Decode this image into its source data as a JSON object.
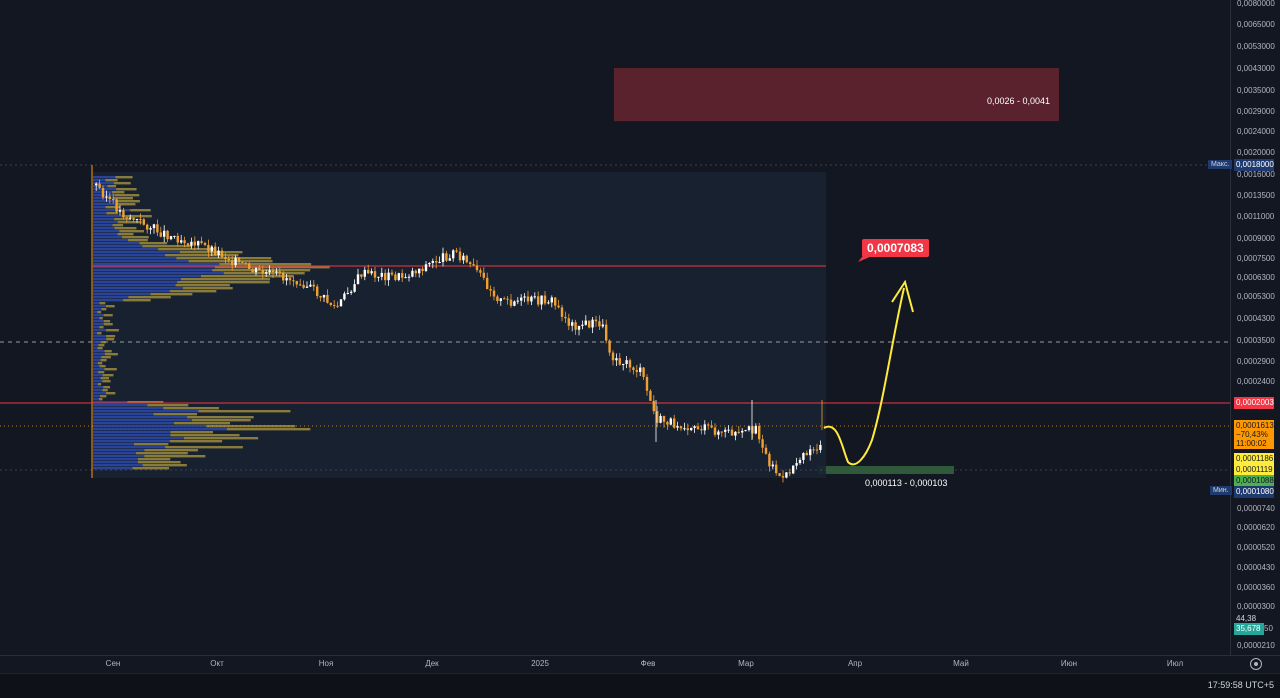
{
  "price_scale": {
    "ticks": [
      "0,0080000",
      "0,0065000",
      "0,0053000",
      "0,0043000",
      "0,0035000",
      "0,0029000",
      "0,0024000",
      "0,0020000",
      "0,0016000",
      "0,0013500",
      "0,0011000",
      "0,0009000",
      "0,0007500",
      "0,0006300",
      "0,0005300",
      "0,0004300",
      "0,0003500",
      "0,0002900",
      "0,0002400",
      "0,0000740",
      "0,0000620",
      "0,0000520",
      "0,0000430",
      "0,0000360",
      "0,0000300",
      "0,0000210"
    ],
    "max_label": "Макс.",
    "max_value": "0,0018000",
    "min_label": "Мин.",
    "min_value": "0,0001080",
    "red_line_value": "0,0002003",
    "current_price": "0,0001613",
    "current_change": "−70,43%",
    "countdown": "11:00:02",
    "tag_yellow_1": "0,0001186",
    "tag_yellow_2": "0,0001119",
    "tag_green": "0,0001088",
    "indicator_value_1": "44,38",
    "indicator_value_2": "35,678",
    "indicator_value_2_suffix": "50",
    "colors": {
      "red": "#f23645",
      "orange": "#ff9800",
      "yellow": "#ffeb3b",
      "green": "#4caf50",
      "blue_tag": "#1e3a6e",
      "teal": "#26a69a"
    }
  },
  "time_axis": {
    "labels": [
      "Сен",
      "Окт",
      "Ноя",
      "Дек",
      "2025",
      "Фев",
      "Мар",
      "Апр",
      "Май",
      "Июн",
      "Июл"
    ]
  },
  "annotations": {
    "resistance_zone": "0,0026 - 0,0041",
    "support_zone": "0,000113 - 0,000103",
    "target_price": "0,0007083"
  },
  "status_bar": {
    "clock": "17:59:58 UTC+5"
  },
  "chart_data": {
    "type": "candlestick",
    "x": [
      "Сен",
      "Окт",
      "Ноя",
      "Дек",
      "2025",
      "Фев",
      "Мар"
    ],
    "close_approx": [
      0.0015,
      0.001,
      0.00068,
      0.00085,
      0.00053,
      0.0002,
      0.000161
    ],
    "horizontal_lines": [
      0.0007083,
      0.0002003
    ],
    "zones": [
      {
        "label": "0,0026 - 0,0041",
        "low": 0.0026,
        "high": 0.0041
      },
      {
        "label": "0,000113 - 0,000103",
        "low": 0.000103,
        "high": 0.000113
      }
    ],
    "projection": {
      "from": 0.000161,
      "dip": 0.000108,
      "to": 0.0007083
    },
    "ylim": [
      2.1e-05,
      0.008
    ],
    "log_scale": true
  }
}
